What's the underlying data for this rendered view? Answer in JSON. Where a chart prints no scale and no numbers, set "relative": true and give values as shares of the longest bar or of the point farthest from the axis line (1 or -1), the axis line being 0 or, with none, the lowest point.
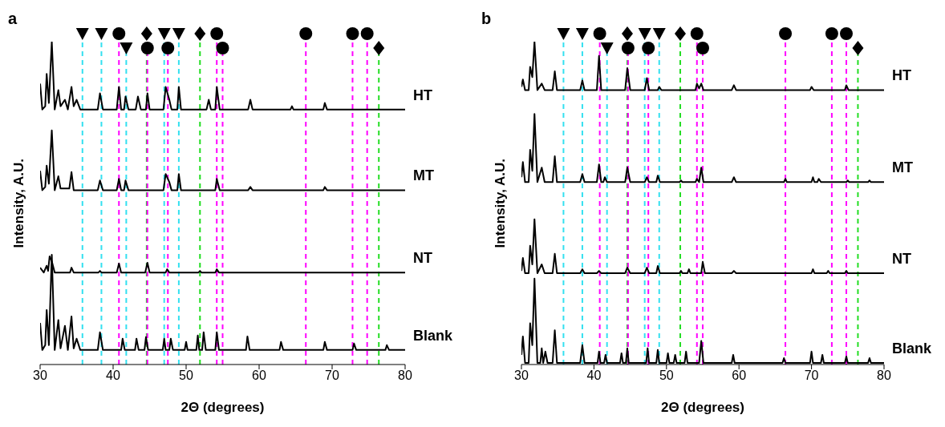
{
  "chart_data": [
    {
      "type": "line",
      "title": "a",
      "xlabel": "2Θ (degrees)",
      "ylabel": "Intensity, A.U.",
      "relative": true,
      "xlim": [
        30,
        80
      ],
      "xticks": [
        30,
        40,
        50,
        60,
        70,
        80
      ],
      "line_style": "solid",
      "ref_lines": [
        {
          "axis": "x",
          "value": 35.8,
          "color": "#33e0f0",
          "line_style": "dashed"
        },
        {
          "axis": "x",
          "value": 38.4,
          "color": "#33e0f0",
          "line_style": "dashed"
        },
        {
          "axis": "x",
          "value": 40.8,
          "color": "#ff00ff",
          "line_style": "dashed"
        },
        {
          "axis": "x",
          "value": 41.8,
          "color": "#33e0f0",
          "line_style": "dashed"
        },
        {
          "axis": "x",
          "value": 44.6,
          "color": "#22dd22",
          "line_style": "dashed"
        },
        {
          "axis": "x",
          "value": 44.7,
          "color": "#ff00ff",
          "line_style": "dashed"
        },
        {
          "axis": "x",
          "value": 47.0,
          "color": "#33e0f0",
          "line_style": "dashed"
        },
        {
          "axis": "x",
          "value": 47.5,
          "color": "#ff00ff",
          "line_style": "dashed"
        },
        {
          "axis": "x",
          "value": 49.0,
          "color": "#33e0f0",
          "line_style": "dashed"
        },
        {
          "axis": "x",
          "value": 51.9,
          "color": "#22dd22",
          "line_style": "dashed"
        },
        {
          "axis": "x",
          "value": 54.2,
          "color": "#ff00ff",
          "line_style": "dashed"
        },
        {
          "axis": "x",
          "value": 55.0,
          "color": "#ff00ff",
          "line_style": "dashed"
        },
        {
          "axis": "x",
          "value": 66.4,
          "color": "#ff00ff",
          "line_style": "dashed"
        },
        {
          "axis": "x",
          "value": 72.8,
          "color": "#ff00ff",
          "line_style": "dashed"
        },
        {
          "axis": "x",
          "value": 74.8,
          "color": "#ff00ff",
          "line_style": "dashed"
        },
        {
          "axis": "x",
          "value": 76.4,
          "color": "#22dd22",
          "line_style": "dashed"
        }
      ],
      "series": [
        {
          "name": "HT",
          "color": "#000000",
          "x": [
            30,
            30.3,
            30.7,
            30.9,
            31.2,
            31.6,
            32.0,
            32.5,
            32.8,
            33.4,
            33.8,
            34.3,
            34.6,
            35.0,
            35.5,
            37.9,
            38.2,
            38.6,
            40.5,
            40.8,
            41.1,
            41.5,
            41.7,
            42.1,
            43.1,
            43.4,
            43.8,
            44.5,
            44.7,
            45.0,
            46.9,
            47.2,
            47.7,
            48.0,
            48.8,
            49.0,
            49.3,
            52.8,
            53.1,
            53.4,
            54.0,
            54.2,
            54.6,
            58.5,
            58.8,
            59.1,
            64.3,
            64.5,
            64.7,
            68.8,
            69.0,
            69.3,
            80
          ],
          "values": [
            0.87,
            0.79,
            0.8,
            0.9,
            0.81,
            1.0,
            0.79,
            0.85,
            0.8,
            0.82,
            0.79,
            0.86,
            0.8,
            0.82,
            0.79,
            0.79,
            0.84,
            0.79,
            0.79,
            0.86,
            0.79,
            0.79,
            0.83,
            0.79,
            0.79,
            0.83,
            0.79,
            0.79,
            0.84,
            0.79,
            0.79,
            0.86,
            0.82,
            0.79,
            0.79,
            0.86,
            0.79,
            0.79,
            0.82,
            0.79,
            0.79,
            0.86,
            0.79,
            0.79,
            0.82,
            0.79,
            0.79,
            0.8,
            0.79,
            0.79,
            0.81,
            0.79,
            0.79
          ]
        },
        {
          "name": "MT",
          "color": "#000000",
          "x": [
            30,
            30.3,
            30.7,
            30.9,
            31.2,
            31.6,
            32.0,
            32.5,
            32.8,
            34.0,
            34.3,
            34.6,
            37.9,
            38.2,
            38.6,
            40.5,
            40.8,
            41.1,
            41.5,
            41.7,
            42.1,
            46.9,
            47.2,
            47.7,
            48.0,
            48.8,
            49.0,
            49.3,
            54.0,
            54.2,
            54.6,
            58.5,
            58.8,
            59.1,
            68.8,
            69.0,
            69.3,
            80
          ],
          "values": [
            0.6,
            0.54,
            0.55,
            0.616,
            0.56,
            0.725,
            0.54,
            0.583,
            0.545,
            0.545,
            0.596,
            0.54,
            0.54,
            0.57,
            0.54,
            0.54,
            0.575,
            0.54,
            0.54,
            0.57,
            0.54,
            0.54,
            0.59,
            0.565,
            0.54,
            0.54,
            0.59,
            0.54,
            0.54,
            0.575,
            0.54,
            0.54,
            0.55,
            0.54,
            0.54,
            0.55,
            0.54,
            0.54
          ]
        },
        {
          "name": "NT",
          "color": "#000000",
          "x": [
            30,
            30.5,
            30.9,
            31.1,
            31.3,
            31.6,
            32.0,
            34.1,
            34.3,
            34.6,
            38.0,
            38.2,
            38.4,
            40.5,
            40.8,
            41.1,
            44.4,
            44.7,
            45.0,
            47.2,
            47.4,
            47.7,
            51.7,
            51.9,
            52.1,
            54.0,
            54.2,
            54.5,
            80
          ],
          "values": [
            0.3,
            0.285,
            0.306,
            0.29,
            0.335,
            0.32,
            0.285,
            0.285,
            0.3,
            0.285,
            0.285,
            0.29,
            0.285,
            0.285,
            0.313,
            0.285,
            0.285,
            0.315,
            0.285,
            0.285,
            0.295,
            0.285,
            0.285,
            0.29,
            0.285,
            0.285,
            0.295,
            0.285,
            0.285
          ]
        },
        {
          "name": "Blank",
          "color": "#000000",
          "x": [
            30,
            30.3,
            30.7,
            30.9,
            31.2,
            31.6,
            32.0,
            32.5,
            32.8,
            33.4,
            33.8,
            34.3,
            34.6,
            35.0,
            35.5,
            37.9,
            38.2,
            38.6,
            41.1,
            41.3,
            41.6,
            43.0,
            43.2,
            43.5,
            44.3,
            44.5,
            44.8,
            46.8,
            47.0,
            47.2,
            47.7,
            47.9,
            48.2,
            49.8,
            50.0,
            50.2,
            51.4,
            51.6,
            51.8,
            52.2,
            52.4,
            52.7,
            54.0,
            54.2,
            54.5,
            58.2,
            58.4,
            58.7,
            62.8,
            63.0,
            63.3,
            68.8,
            69.0,
            69.3,
            72.8,
            73.0,
            73.3,
            77.3,
            77.5,
            77.8,
            80
          ],
          "values": [
            0.129,
            0.045,
            0.06,
            0.169,
            0.06,
            0.34,
            0.045,
            0.138,
            0.05,
            0.12,
            0.045,
            0.149,
            0.05,
            0.08,
            0.045,
            0.045,
            0.1,
            0.045,
            0.045,
            0.08,
            0.045,
            0.045,
            0.08,
            0.045,
            0.045,
            0.085,
            0.045,
            0.045,
            0.08,
            0.045,
            0.045,
            0.08,
            0.045,
            0.045,
            0.07,
            0.045,
            0.045,
            0.09,
            0.045,
            0.045,
            0.1,
            0.045,
            0.045,
            0.1,
            0.045,
            0.045,
            0.087,
            0.045,
            0.045,
            0.07,
            0.045,
            0.045,
            0.07,
            0.045,
            0.045,
            0.065,
            0.045,
            0.045,
            0.06,
            0.045,
            0.045
          ]
        }
      ]
    },
    {
      "type": "line",
      "title": "b",
      "xlabel": "2Θ (degrees)",
      "ylabel": "Intensity, A.U.",
      "relative": true,
      "xlim": [
        30,
        80
      ],
      "xticks": [
        30,
        40,
        50,
        60,
        70,
        80
      ],
      "line_style": "solid",
      "ref_lines": [
        {
          "axis": "x",
          "value": 35.8,
          "color": "#33e0f0",
          "line_style": "dashed"
        },
        {
          "axis": "x",
          "value": 38.4,
          "color": "#33e0f0",
          "line_style": "dashed"
        },
        {
          "axis": "x",
          "value": 40.8,
          "color": "#ff00ff",
          "line_style": "dashed"
        },
        {
          "axis": "x",
          "value": 41.8,
          "color": "#33e0f0",
          "line_style": "dashed"
        },
        {
          "axis": "x",
          "value": 44.6,
          "color": "#22dd22",
          "line_style": "dashed"
        },
        {
          "axis": "x",
          "value": 44.7,
          "color": "#ff00ff",
          "line_style": "dashed"
        },
        {
          "axis": "x",
          "value": 47.0,
          "color": "#33e0f0",
          "line_style": "dashed"
        },
        {
          "axis": "x",
          "value": 47.5,
          "color": "#ff00ff",
          "line_style": "dashed"
        },
        {
          "axis": "x",
          "value": 49.0,
          "color": "#33e0f0",
          "line_style": "dashed"
        },
        {
          "axis": "x",
          "value": 51.9,
          "color": "#22dd22",
          "line_style": "dashed"
        },
        {
          "axis": "x",
          "value": 54.2,
          "color": "#ff00ff",
          "line_style": "dashed"
        },
        {
          "axis": "x",
          "value": 55.0,
          "color": "#ff00ff",
          "line_style": "dashed"
        },
        {
          "axis": "x",
          "value": 66.4,
          "color": "#ff00ff",
          "line_style": "dashed"
        },
        {
          "axis": "x",
          "value": 72.8,
          "color": "#ff00ff",
          "line_style": "dashed"
        },
        {
          "axis": "x",
          "value": 74.8,
          "color": "#ff00ff",
          "line_style": "dashed"
        },
        {
          "axis": "x",
          "value": 76.4,
          "color": "#22dd22",
          "line_style": "dashed"
        }
      ],
      "series": [
        {
          "name": "HT",
          "color": "#000000",
          "x": [
            30,
            30.2,
            30.5,
            31.0,
            31.2,
            31.5,
            31.8,
            32.2,
            32.8,
            33.2,
            34.3,
            34.6,
            34.9,
            38.1,
            38.4,
            38.7,
            40.4,
            40.7,
            41.0,
            44.3,
            44.6,
            45.0,
            47.0,
            47.3,
            47.6,
            48.8,
            49.0,
            49.3,
            54.0,
            54.2,
            54.5,
            54.8,
            55.1,
            59.0,
            59.3,
            59.6,
            69.8,
            70.0,
            70.3,
            74.6,
            74.8,
            75.1,
            80
          ],
          "values": [
            0.86,
            0.883,
            0.85,
            0.85,
            0.922,
            0.89,
            1.0,
            0.85,
            0.87,
            0.85,
            0.85,
            0.908,
            0.85,
            0.85,
            0.88,
            0.85,
            0.85,
            0.956,
            0.85,
            0.85,
            0.918,
            0.85,
            0.85,
            0.887,
            0.85,
            0.85,
            0.86,
            0.85,
            0.85,
            0.87,
            0.855,
            0.87,
            0.85,
            0.85,
            0.865,
            0.85,
            0.85,
            0.86,
            0.85,
            0.85,
            0.865,
            0.85,
            0.85
          ]
        },
        {
          "name": "MT",
          "color": "#000000",
          "x": [
            30,
            30.2,
            30.5,
            31.0,
            31.2,
            31.5,
            31.8,
            32.2,
            32.8,
            33.2,
            34.3,
            34.6,
            34.9,
            38.1,
            38.4,
            38.7,
            40.4,
            40.7,
            41.0,
            41.3,
            41.5,
            41.8,
            44.3,
            44.6,
            45.0,
            47.0,
            47.3,
            47.6,
            48.6,
            48.8,
            49.1,
            51.8,
            52.0,
            52.2,
            54.0,
            54.2,
            54.5,
            54.8,
            55.1,
            59.0,
            59.3,
            59.6,
            66.2,
            66.4,
            66.6,
            70.0,
            70.2,
            70.4,
            70.8,
            71.0,
            71.3,
            74.8,
            75.0,
            75.2,
            77.8,
            78.0,
            78.2,
            80
          ],
          "values": [
            0.58,
            0.627,
            0.565,
            0.565,
            0.665,
            0.6,
            0.776,
            0.565,
            0.61,
            0.565,
            0.565,
            0.645,
            0.565,
            0.565,
            0.59,
            0.565,
            0.565,
            0.62,
            0.565,
            0.565,
            0.58,
            0.565,
            0.565,
            0.61,
            0.565,
            0.565,
            0.58,
            0.565,
            0.565,
            0.585,
            0.565,
            0.565,
            0.57,
            0.565,
            0.565,
            0.575,
            0.565,
            0.61,
            0.565,
            0.565,
            0.58,
            0.565,
            0.565,
            0.575,
            0.565,
            0.565,
            0.58,
            0.565,
            0.565,
            0.575,
            0.565,
            0.565,
            0.57,
            0.565,
            0.565,
            0.57,
            0.565,
            0.565
          ]
        },
        {
          "name": "NT",
          "color": "#000000",
          "x": [
            30,
            30.2,
            30.5,
            31.0,
            31.2,
            31.5,
            31.8,
            32.2,
            32.8,
            33.2,
            34.3,
            34.6,
            34.9,
            38.1,
            38.4,
            38.7,
            40.4,
            40.7,
            41.0,
            44.3,
            44.6,
            45.0,
            47.0,
            47.3,
            47.6,
            48.6,
            48.8,
            49.1,
            51.8,
            52.0,
            52.2,
            52.9,
            53.1,
            53.3,
            54.8,
            55.0,
            55.3,
            59.0,
            59.3,
            59.6,
            70.0,
            70.2,
            70.4,
            72.1,
            72.3,
            72.5,
            74.6,
            74.8,
            75.0,
            80
          ],
          "values": [
            0.29,
            0.33,
            0.283,
            0.283,
            0.368,
            0.31,
            0.45,
            0.283,
            0.31,
            0.283,
            0.283,
            0.343,
            0.283,
            0.283,
            0.295,
            0.283,
            0.283,
            0.29,
            0.283,
            0.283,
            0.3,
            0.283,
            0.283,
            0.3,
            0.283,
            0.283,
            0.305,
            0.283,
            0.283,
            0.29,
            0.283,
            0.283,
            0.295,
            0.283,
            0.283,
            0.318,
            0.283,
            0.283,
            0.29,
            0.283,
            0.283,
            0.295,
            0.283,
            0.283,
            0.29,
            0.283,
            0.283,
            0.29,
            0.283,
            0.283
          ]
        },
        {
          "name": "Blank",
          "color": "#000000",
          "x": [
            30,
            30.2,
            30.5,
            31.0,
            31.2,
            31.5,
            31.8,
            32.2,
            32.6,
            32.8,
            33.0,
            33.3,
            33.6,
            34.3,
            34.6,
            34.9,
            38.1,
            38.4,
            38.7,
            40.5,
            40.7,
            40.9,
            41.4,
            41.6,
            41.8,
            43.6,
            43.8,
            44.0,
            44.4,
            44.6,
            44.8,
            47.2,
            47.4,
            47.6,
            48.6,
            48.8,
            49.0,
            50.0,
            50.2,
            50.4,
            51.0,
            51.2,
            51.4,
            52.5,
            52.7,
            52.9,
            54.5,
            54.8,
            55.1,
            59.0,
            59.2,
            59.4,
            66.0,
            66.2,
            66.4,
            69.8,
            70.0,
            70.2,
            71.3,
            71.5,
            71.7,
            74.6,
            74.8,
            75.0,
            77.8,
            78.0,
            78.2,
            80
          ],
          "values": [
            0.03,
            0.087,
            0.005,
            0.005,
            0.128,
            0.06,
            0.266,
            0.005,
            0.005,
            0.05,
            0.005,
            0.04,
            0.005,
            0.005,
            0.106,
            0.005,
            0.005,
            0.06,
            0.005,
            0.005,
            0.04,
            0.005,
            0.005,
            0.03,
            0.005,
            0.005,
            0.035,
            0.005,
            0.005,
            0.05,
            0.005,
            0.005,
            0.05,
            0.005,
            0.005,
            0.045,
            0.005,
            0.005,
            0.035,
            0.005,
            0.005,
            0.03,
            0.005,
            0.005,
            0.04,
            0.005,
            0.005,
            0.073,
            0.005,
            0.005,
            0.03,
            0.005,
            0.005,
            0.02,
            0.005,
            0.005,
            0.04,
            0.005,
            0.005,
            0.03,
            0.005,
            0.005,
            0.025,
            0.005,
            0.005,
            0.02,
            0.005,
            0.005
          ]
        }
      ]
    }
  ]
}
